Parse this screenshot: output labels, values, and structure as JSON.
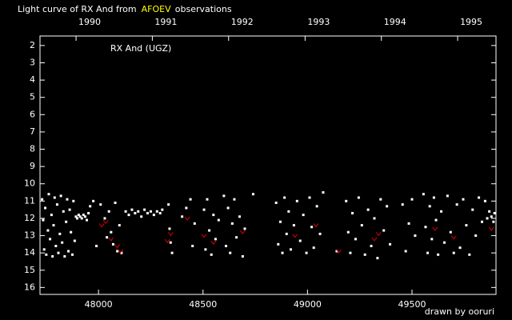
{
  "chart_data": {
    "type": "scatter",
    "title_parts": [
      {
        "text": "Light curve of RX And from",
        "color": "#ffffff"
      },
      {
        "text": "AFOEV",
        "color": "#ffff00"
      },
      {
        "text": "observations",
        "color": "#ffffff"
      }
    ],
    "annotation": "RX And (UGZ)",
    "credit": "drawn by ooruri",
    "credit_color": "#00e0e0",
    "xlim": [
      47720,
      49902
    ],
    "xticks": [
      48000,
      48500,
      49000,
      49500
    ],
    "top_xticks": [
      {
        "value": 47892.5,
        "label": "1990"
      },
      {
        "value": 48257.5,
        "label": "1991"
      },
      {
        "value": 48622.5,
        "label": "1992"
      },
      {
        "value": 48988.5,
        "label": "1993"
      },
      {
        "value": 49353.5,
        "label": "1994"
      },
      {
        "value": 49718.5,
        "label": "1995"
      }
    ],
    "ylim": [
      1.45,
      16.4
    ],
    "y_inverted": true,
    "yticks": [
      2,
      3,
      4,
      5,
      6,
      7,
      8,
      9,
      10,
      11,
      12,
      13,
      14,
      15,
      16
    ],
    "series": [
      {
        "color": "#ffffff",
        "marker": "dot",
        "x": [
          47730,
          47735,
          47740,
          47745,
          47750,
          47758,
          47762,
          47768,
          47775,
          47780,
          47785,
          47790,
          47796,
          47802,
          47808,
          47815,
          47820,
          47826,
          47832,
          47838,
          47845,
          47850,
          47856,
          47862,
          47868,
          47875,
          47880,
          47886,
          47892,
          47898,
          47905,
          47912,
          47920,
          47928,
          47936,
          47944,
          47952,
          47960,
          47975,
          47990,
          48010,
          48030,
          48040,
          48050,
          48060,
          48070,
          48080,
          48090,
          48100,
          48110,
          48130,
          48145,
          48160,
          48175,
          48190,
          48205,
          48220,
          48235,
          48250,
          48265,
          48280,
          48295,
          48305,
          48335,
          48340,
          48345,
          48352,
          48400,
          48420,
          48440,
          48450,
          48460,
          48505,
          48512,
          48520,
          48530,
          48540,
          48550,
          48560,
          48575,
          48600,
          48610,
          48620,
          48630,
          48640,
          48650,
          48660,
          48675,
          48690,
          48700,
          48740,
          48850,
          48860,
          48870,
          48880,
          48890,
          48900,
          48910,
          48920,
          48935,
          48950,
          48965,
          48980,
          48995,
          49010,
          49020,
          49030,
          49045,
          49060,
          49075,
          49140,
          49185,
          49195,
          49205,
          49215,
          49230,
          49245,
          49260,
          49275,
          49290,
          49305,
          49320,
          49335,
          49350,
          49365,
          49380,
          49395,
          49455,
          49470,
          49485,
          49500,
          49515,
          49555,
          49565,
          49575,
          49585,
          49595,
          49605,
          49615,
          49625,
          49640,
          49655,
          49670,
          49685,
          49700,
          49715,
          49730,
          49745,
          49760,
          49775,
          49790,
          49805,
          49820,
          49835,
          49850,
          49860,
          49870,
          49880,
          49890,
          49895
        ],
        "values": [
          10.9,
          12.1,
          13.8,
          11.4,
          14.1,
          12.7,
          10.6,
          13.2,
          11.8,
          14.2,
          12.4,
          10.8,
          13.6,
          11.2,
          14.0,
          12.9,
          10.7,
          13.4,
          11.6,
          14.2,
          12.2,
          10.9,
          13.9,
          11.5,
          12.8,
          14.1,
          11.0,
          13.3,
          11.9,
          12.0,
          11.8,
          11.9,
          12.0,
          11.8,
          11.9,
          12.1,
          11.7,
          11.3,
          11.0,
          13.6,
          11.2,
          12.0,
          13.1,
          11.6,
          12.8,
          13.5,
          11.1,
          13.9,
          12.4,
          14.0,
          11.6,
          11.8,
          11.5,
          11.7,
          11.6,
          11.9,
          11.5,
          11.7,
          11.6,
          11.8,
          11.6,
          11.7,
          11.5,
          11.2,
          12.6,
          13.4,
          14.0,
          11.9,
          11.4,
          10.9,
          13.6,
          12.3,
          11.5,
          13.8,
          10.9,
          12.7,
          14.1,
          11.8,
          13.2,
          12.1,
          10.7,
          13.6,
          11.4,
          14.0,
          12.3,
          10.9,
          13.1,
          11.9,
          14.2,
          12.6,
          10.6,
          11.1,
          13.5,
          12.2,
          14.0,
          10.8,
          12.9,
          11.6,
          13.8,
          12.4,
          11.0,
          13.3,
          11.8,
          14.0,
          10.8,
          12.5,
          13.7,
          11.3,
          12.9,
          10.5,
          13.9,
          11.0,
          12.8,
          14.0,
          11.7,
          13.2,
          10.8,
          12.4,
          14.1,
          11.5,
          13.6,
          12.0,
          14.3,
          10.9,
          12.7,
          11.3,
          13.5,
          11.2,
          13.9,
          12.3,
          10.9,
          13.0,
          10.6,
          12.5,
          14.0,
          11.3,
          13.2,
          10.8,
          12.1,
          14.1,
          11.6,
          13.4,
          10.7,
          12.8,
          14.0,
          11.2,
          13.7,
          10.9,
          12.4,
          14.1,
          11.5,
          13.0,
          10.8,
          12.2,
          11.0,
          12.0,
          11.6,
          11.9,
          12.2,
          11.7
        ]
      },
      {
        "color": "#e00000",
        "marker": "v",
        "x": [
          48015,
          48035,
          48060,
          48090,
          48105,
          48330,
          48345,
          48425,
          48505,
          48550,
          48690,
          48940,
          49040,
          49150,
          49320,
          49340,
          49610,
          49700,
          49880
        ],
        "values": [
          12.4,
          12.2,
          13.2,
          13.6,
          13.9,
          13.3,
          12.9,
          12.0,
          13.0,
          13.4,
          12.8,
          13.0,
          12.4,
          13.9,
          13.2,
          12.9,
          12.6,
          13.1,
          12.6
        ]
      }
    ]
  }
}
